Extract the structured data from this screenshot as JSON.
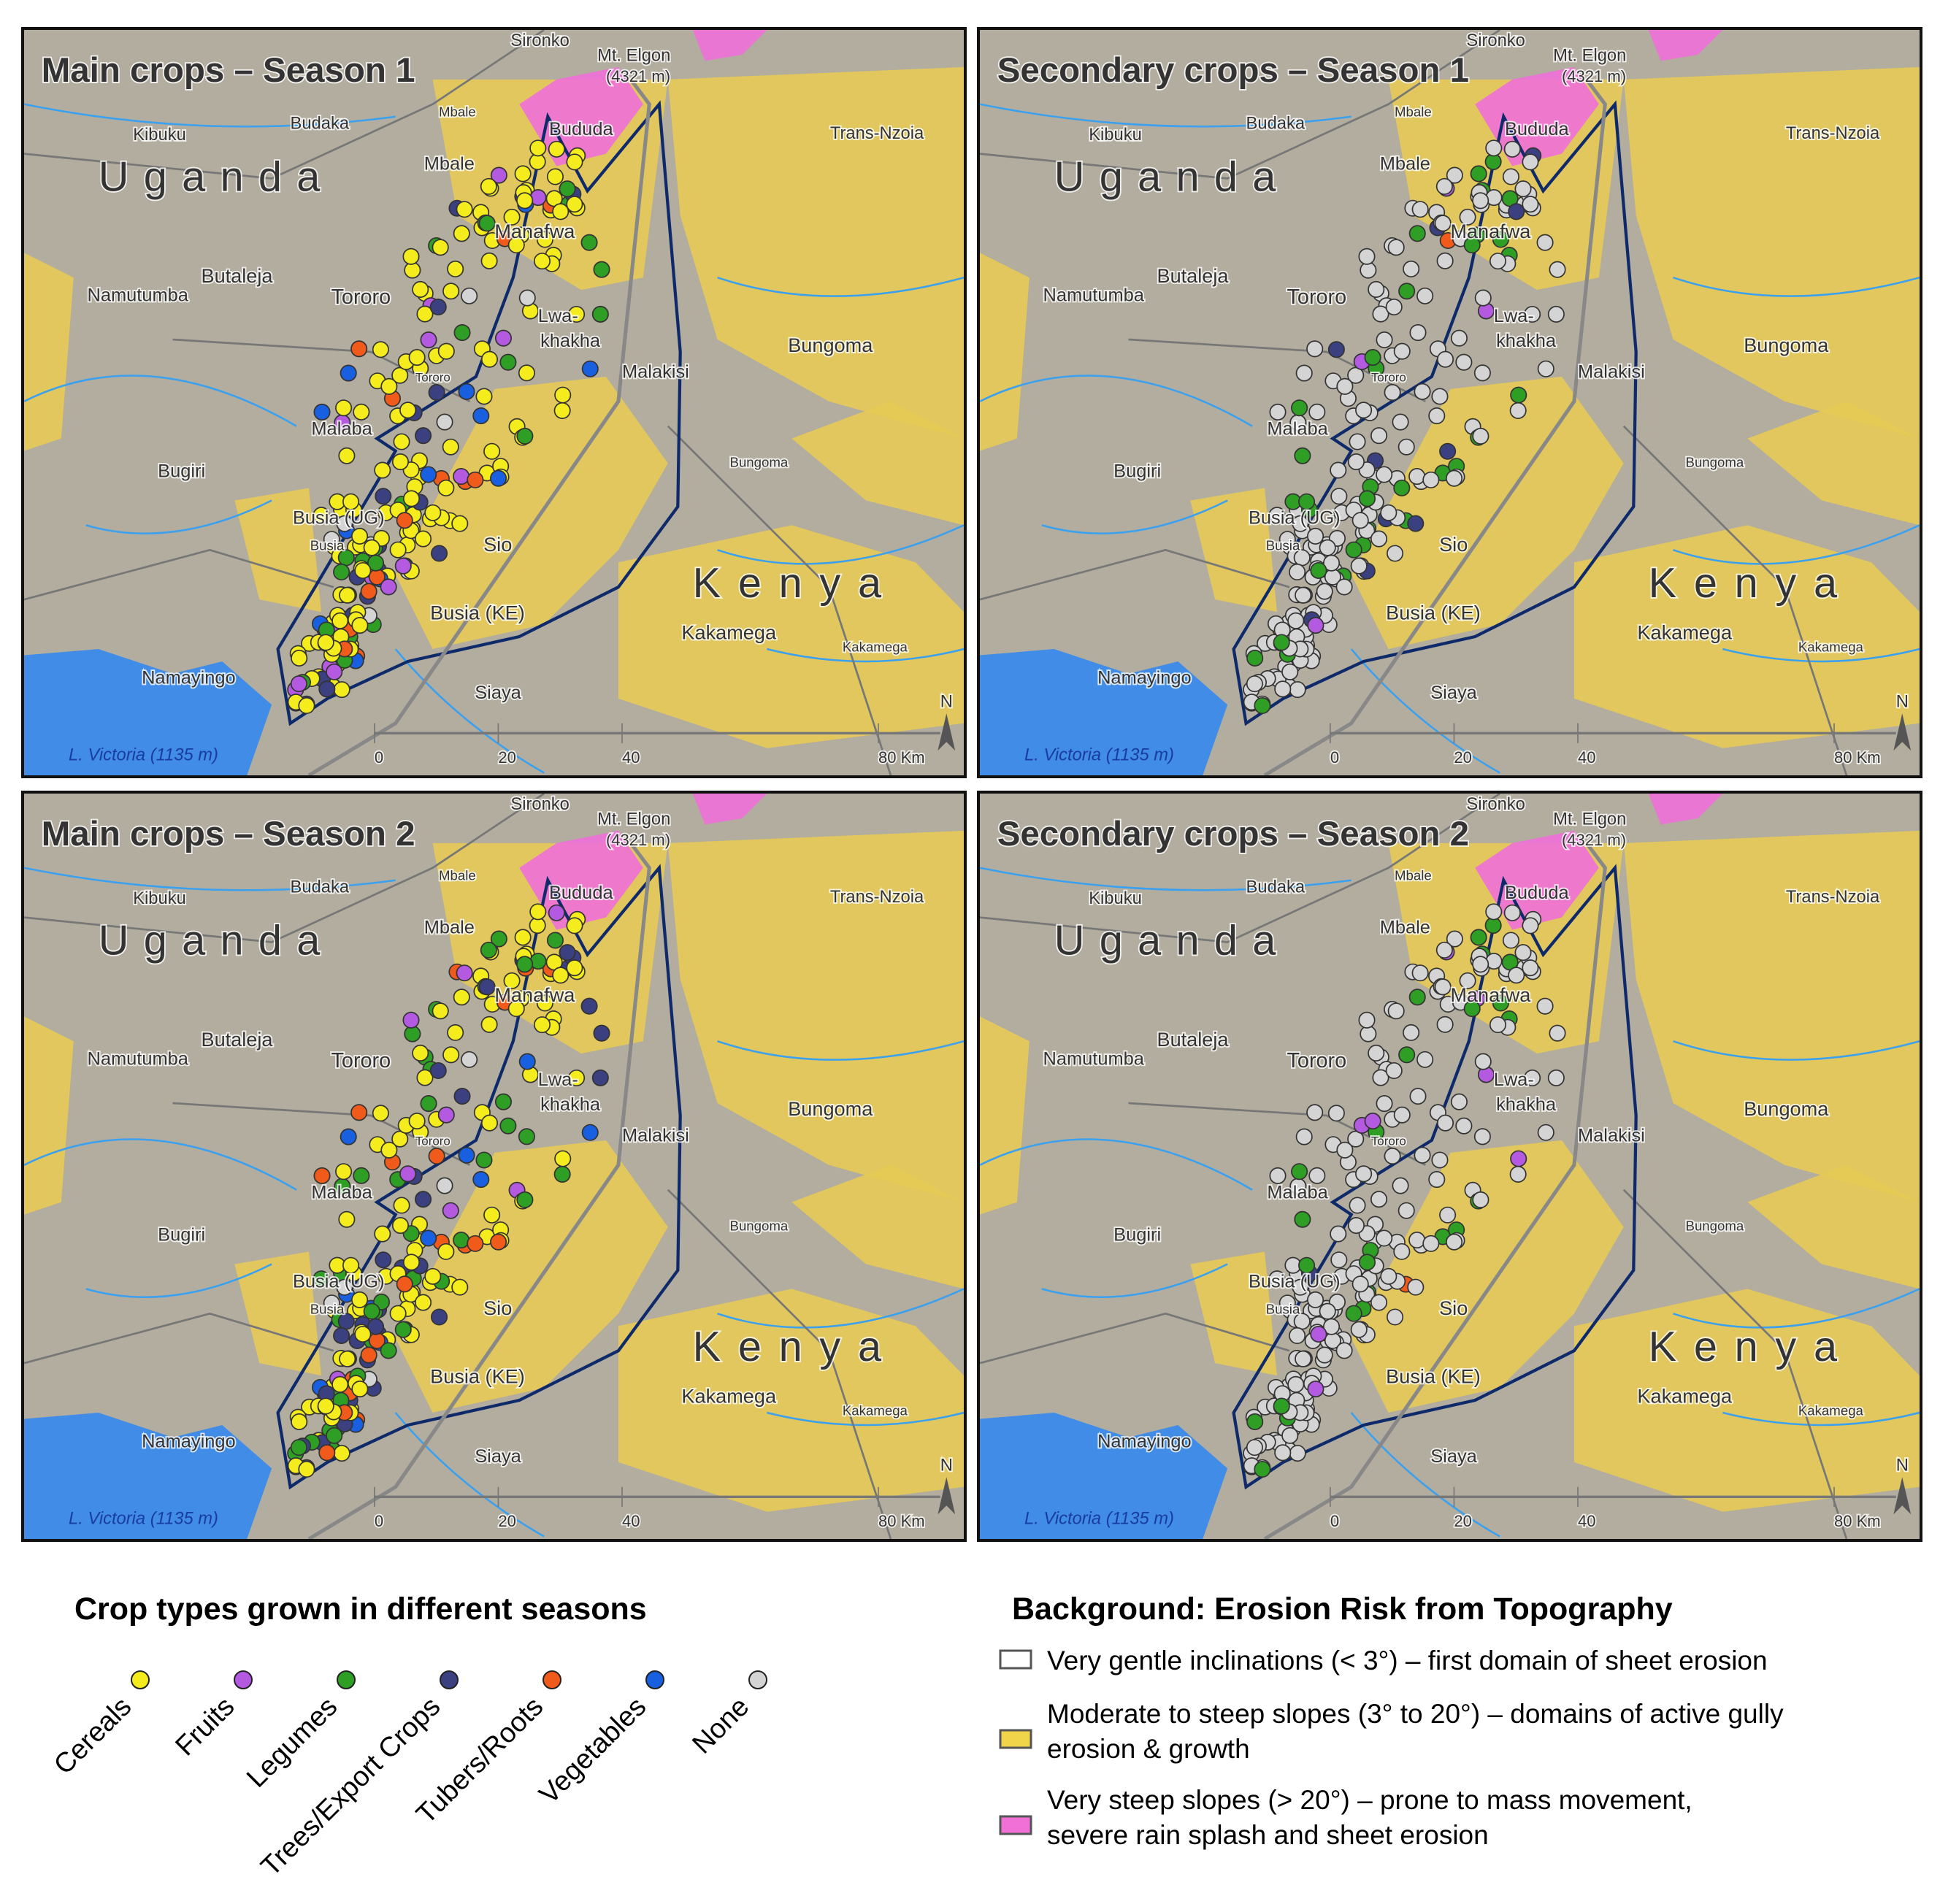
{
  "panels": [
    {
      "title": "Main crops – Season 1"
    },
    {
      "title": "Secondary crops – Season 1"
    },
    {
      "title": "Main crops – Season 2"
    },
    {
      "title": "Secondary crops – Season 2"
    }
  ],
  "map_labels": {
    "sironko": "Sironko",
    "elgon": "Mt. Elgon",
    "elgon_alt": "(4321 m)",
    "mbale_small": "Mbale",
    "budaka": "Budaka",
    "kibuku": "Kibuku",
    "bududa": "Bududa",
    "uganda": "Uganda",
    "trans_nzoia": "Trans-Nzoia",
    "mbale": "Mbale",
    "manafwa": "Manafwa",
    "butaleja": "Butaleja",
    "namutumba": "Namutumba",
    "tororo": "Tororo",
    "tororo_small": "Tororo",
    "lwa": "Lwa-",
    "khakha": "khakha",
    "bungoma": "Bungoma",
    "malakisi": "Malakisi",
    "malaba": "Malaba",
    "bungoma_small": "Bungoma",
    "bugiri": "Bugiri",
    "busia_ug": "Busia (UG)",
    "busia_small": "Busia",
    "sio": "Sio",
    "kenya": "Kenya",
    "busia_ke": "Busia (KE)",
    "kakamega": "Kakamega",
    "kakamega_small": "Kakamega",
    "namayingo": "Namayingo",
    "siaya": "Siaya",
    "victoria": "L. Victoria (1135 m)",
    "scale_0": "0",
    "scale_20": "20",
    "scale_40": "40",
    "scale_80": "80 Km",
    "north": "N"
  },
  "crop_legend": {
    "title": "Crop types grown in different seasons",
    "items": [
      {
        "name": "Cereals",
        "color": "#f5ec1e"
      },
      {
        "name": "Fruits",
        "color": "#b35ae0"
      },
      {
        "name": "Legumes",
        "color": "#2e9e25"
      },
      {
        "name": "Trees/Export Crops",
        "color": "#3a4080"
      },
      {
        "name": "Tubers/Roots",
        "color": "#f05a1a"
      },
      {
        "name": "Vegetables",
        "color": "#1860e0"
      },
      {
        "name": "None",
        "color": "#d4d4d4"
      }
    ]
  },
  "erosion_legend": {
    "title": "Background: Erosion Risk from Topography",
    "items": [
      {
        "lines": [
          "Very gentle inclinations (< 3°) – first domain of sheet erosion"
        ],
        "color": "#ffffff"
      },
      {
        "lines": [
          "Moderate to steep slopes (3° to 20°) – domains of active gully",
          "erosion & growth"
        ],
        "color": "#f0d44a"
      },
      {
        "lines": [
          "Very steep slopes (> 20°) – prone to mass movement,",
          "severe rain splash and sheet erosion"
        ],
        "color": "#f070d8"
      }
    ]
  }
}
